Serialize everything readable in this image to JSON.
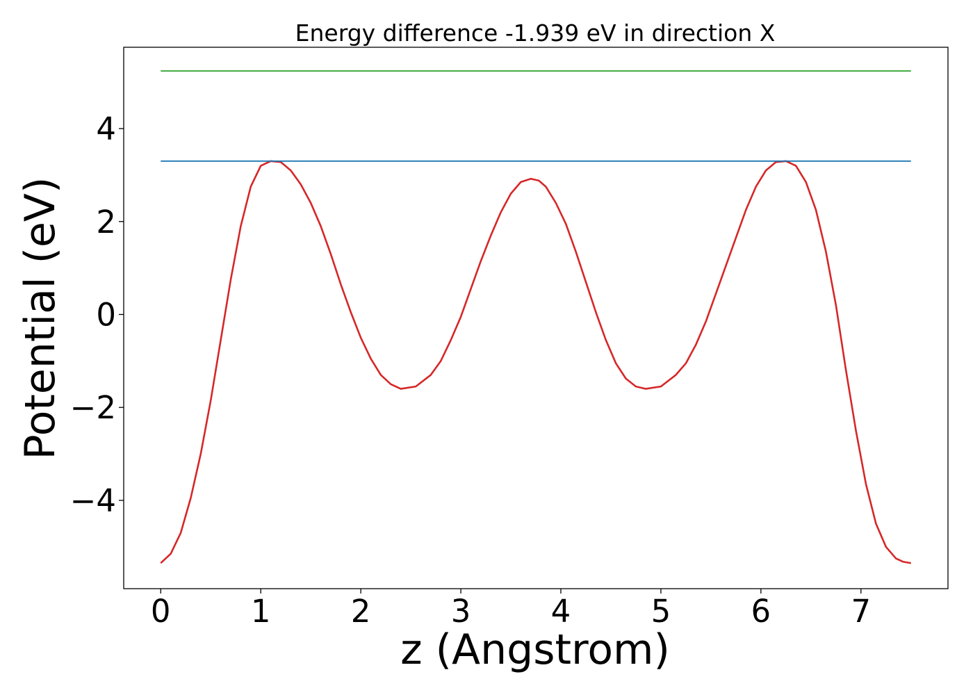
{
  "chart_data": {
    "type": "line",
    "title": "Energy difference -1.939 eV in direction X",
    "xlabel": "z (Angstrom)",
    "ylabel": "Potential (eV)",
    "xlim": [
      -0.37,
      7.87
    ],
    "ylim": [
      -5.9,
      5.75
    ],
    "x_ticks": [
      {
        "value": 0,
        "label": "0"
      },
      {
        "value": 1,
        "label": "1"
      },
      {
        "value": 2,
        "label": "2"
      },
      {
        "value": 3,
        "label": "3"
      },
      {
        "value": 4,
        "label": "4"
      },
      {
        "value": 5,
        "label": "5"
      },
      {
        "value": 6,
        "label": "6"
      },
      {
        "value": 7,
        "label": "7"
      }
    ],
    "y_ticks": [
      {
        "value": -4,
        "label": "−4"
      },
      {
        "value": -2,
        "label": "−2"
      },
      {
        "value": 0,
        "label": "0"
      },
      {
        "value": 2,
        "label": "2"
      },
      {
        "value": 4,
        "label": "4"
      }
    ],
    "grid": false,
    "series": [
      {
        "color": "#d62728",
        "x": [
          0.0,
          0.1,
          0.2,
          0.3,
          0.4,
          0.5,
          0.6,
          0.7,
          0.8,
          0.9,
          1.0,
          1.1,
          1.2,
          1.3,
          1.4,
          1.5,
          1.6,
          1.7,
          1.8,
          1.9,
          2.0,
          2.1,
          2.2,
          2.3,
          2.4,
          2.55,
          2.7,
          2.8,
          2.9,
          3.0,
          3.1,
          3.2,
          3.3,
          3.4,
          3.5,
          3.6,
          3.7,
          3.78,
          3.85,
          3.95,
          4.05,
          4.15,
          4.25,
          4.35,
          4.45,
          4.55,
          4.65,
          4.75,
          4.85,
          5.0,
          5.15,
          5.25,
          5.35,
          5.45,
          5.55,
          5.65,
          5.75,
          5.85,
          5.95,
          6.05,
          6.15,
          6.25,
          6.35,
          6.45,
          6.55,
          6.65,
          6.75,
          6.85,
          6.95,
          7.05,
          7.15,
          7.25,
          7.35,
          7.42,
          7.5
        ],
        "y": [
          -5.35,
          -5.15,
          -4.7,
          -3.95,
          -3.0,
          -1.85,
          -0.55,
          0.75,
          1.9,
          2.75,
          3.2,
          3.3,
          3.28,
          3.1,
          2.8,
          2.4,
          1.9,
          1.3,
          0.65,
          0.05,
          -0.5,
          -0.95,
          -1.3,
          -1.5,
          -1.6,
          -1.55,
          -1.3,
          -1.0,
          -0.55,
          -0.05,
          0.55,
          1.15,
          1.7,
          2.2,
          2.6,
          2.85,
          2.92,
          2.88,
          2.75,
          2.4,
          1.95,
          1.35,
          0.7,
          0.05,
          -0.55,
          -1.05,
          -1.38,
          -1.55,
          -1.6,
          -1.55,
          -1.3,
          -1.05,
          -0.65,
          -0.15,
          0.45,
          1.05,
          1.65,
          2.25,
          2.75,
          3.1,
          3.28,
          3.3,
          3.2,
          2.85,
          2.25,
          1.35,
          0.2,
          -1.2,
          -2.5,
          -3.65,
          -4.5,
          -5.0,
          -5.25,
          -5.32,
          -5.35
        ]
      },
      {
        "color": "#1f77b4",
        "x": [
          0.0,
          7.5
        ],
        "y": [
          3.3,
          3.3
        ]
      },
      {
        "color": "#2ca02c",
        "x": [
          0.0,
          7.5
        ],
        "y": [
          5.24,
          5.24
        ]
      }
    ]
  }
}
